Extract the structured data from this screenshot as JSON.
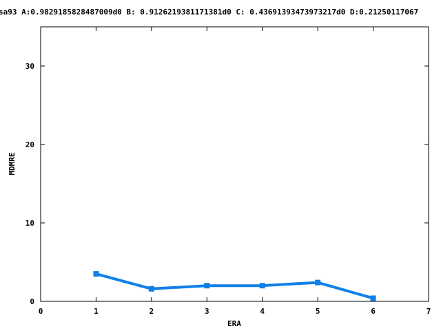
{
  "chart_data": {
    "type": "line",
    "title": "sa93 A:0.9829185828487009d0 B: 0.9126219381171381d0 C: 0.43691393473973217d0 D:0.21250117067",
    "xlabel": "ERA",
    "ylabel": "MDMRE",
    "xlim": [
      0,
      7
    ],
    "ylim": [
      0,
      35
    ],
    "x_ticks": [
      0,
      1,
      2,
      3,
      4,
      5,
      6,
      7
    ],
    "y_ticks": [
      0,
      10,
      20,
      30
    ],
    "grid": false,
    "legend": "none",
    "series": [
      {
        "x": [
          1,
          2,
          3,
          4,
          5,
          6
        ],
        "values": [
          3.5,
          1.6,
          2.0,
          2.0,
          2.4,
          0.4
        ],
        "color": "#0f80e8"
      }
    ]
  }
}
